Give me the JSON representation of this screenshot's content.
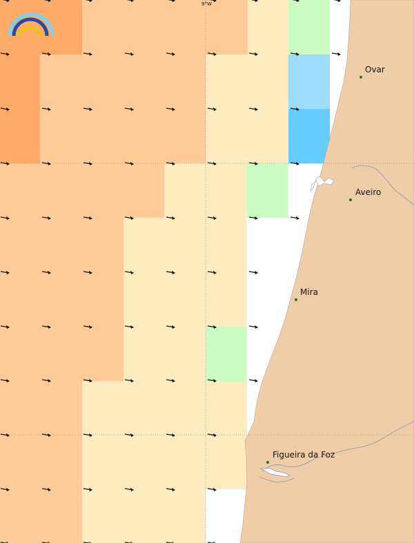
{
  "map": {
    "longitude_label": "9°W",
    "legend_colors": {
      "orange_dark": "#ffaa66",
      "orange_light": "#ffcc99",
      "cream": "#ffebc0",
      "light_green": "#cdfbc4",
      "light_blue": "#9edcfc",
      "blue": "#66ccfc",
      "land": "#efcda9",
      "sea": "#ffffff"
    },
    "cities": [
      {
        "name": "Ovar"
      },
      {
        "name": "Aveiro"
      },
      {
        "name": "Mira"
      },
      {
        "name": "Figueira da Foz"
      }
    ],
    "arrow_direction": "east",
    "logo": "arc-rainbow-logo"
  }
}
